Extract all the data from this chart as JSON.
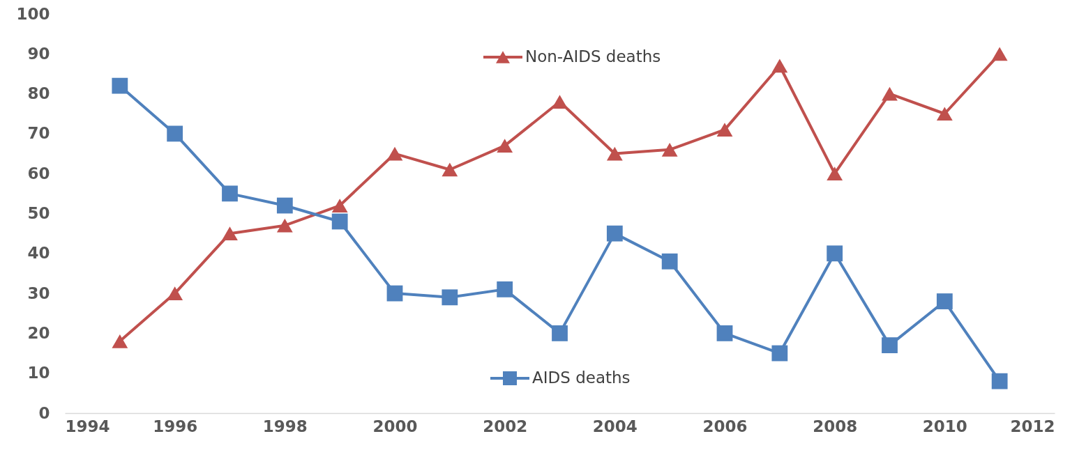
{
  "chart_data": {
    "type": "line",
    "x": [
      1995,
      1996,
      1997,
      1998,
      1999,
      2000,
      2001,
      2002,
      2003,
      2004,
      2005,
      2006,
      2007,
      2008,
      2009,
      2010,
      2011
    ],
    "series": [
      {
        "name": "Non-AIDS deaths",
        "color": "#c0504d",
        "marker": "triangle",
        "values": [
          18,
          30,
          45,
          47,
          52,
          65,
          61,
          67,
          78,
          65,
          66,
          71,
          87,
          60,
          80,
          75,
          90
        ]
      },
      {
        "name": "AIDS deaths",
        "color": "#4f81bd",
        "marker": "square",
        "values": [
          82,
          70,
          55,
          52,
          48,
          30,
          29,
          31,
          20,
          45,
          38,
          20,
          15,
          40,
          17,
          28,
          8
        ]
      }
    ],
    "xlim": [
      1994,
      2012
    ],
    "xticks": [
      1994,
      1996,
      1998,
      2000,
      2002,
      2004,
      2006,
      2008,
      2010,
      2012
    ],
    "ylim": [
      0,
      100
    ],
    "yticks": [
      0,
      10,
      20,
      30,
      40,
      50,
      60,
      70,
      80,
      90,
      100
    ],
    "grid": false,
    "legend": "center",
    "line_style": "solid"
  }
}
